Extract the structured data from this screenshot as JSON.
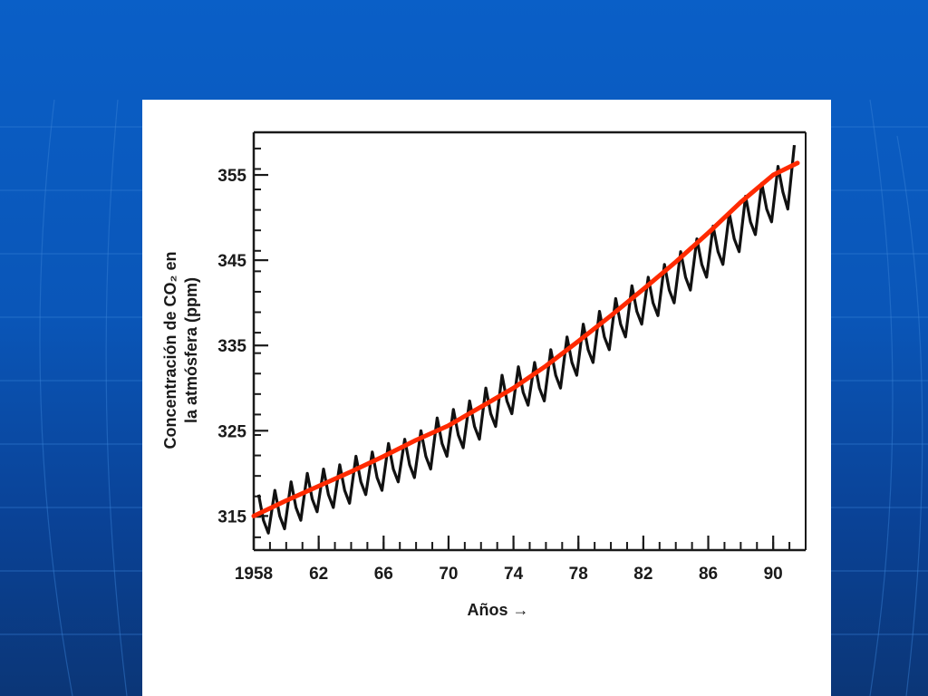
{
  "colors": {
    "background": "#0a56b8",
    "panel": "#ffffff",
    "measured_line": "#111111",
    "trend_line": "#ff2a00",
    "axis": "#1a1a1a"
  },
  "chart_data": {
    "type": "line",
    "title": "",
    "xlabel": "Años →",
    "ylabel_line1": "Concentración de CO₂ en",
    "ylabel_line2": "la atmósfera (ppm)",
    "xlim": [
      1958,
      1992
    ],
    "ylim": [
      311,
      360
    ],
    "x_ticks": [
      1958,
      1962,
      1966,
      1970,
      1974,
      1978,
      1982,
      1986,
      1990
    ],
    "x_tick_labels": [
      "1958",
      "62",
      "66",
      "70",
      "74",
      "78",
      "82",
      "86",
      "90"
    ],
    "y_ticks": [
      315,
      325,
      335,
      345,
      355
    ],
    "y_tick_labels": [
      "315",
      "325",
      "335",
      "345",
      "355"
    ],
    "grid": false,
    "legend": "none",
    "series": [
      {
        "style": "black-sawtooth",
        "x": [
          1958.3,
          1958.6,
          1958.9,
          1959.3,
          1959.6,
          1959.9,
          1960.3,
          1960.6,
          1960.9,
          1961.3,
          1961.6,
          1961.9,
          1962.3,
          1962.6,
          1962.9,
          1963.3,
          1963.6,
          1963.9,
          1964.3,
          1964.6,
          1964.9,
          1965.3,
          1965.6,
          1965.9,
          1966.3,
          1966.6,
          1966.9,
          1967.3,
          1967.6,
          1967.9,
          1968.3,
          1968.6,
          1968.9,
          1969.3,
          1969.6,
          1969.9,
          1970.3,
          1970.6,
          1970.9,
          1971.3,
          1971.6,
          1971.9,
          1972.3,
          1972.6,
          1972.9,
          1973.3,
          1973.6,
          1973.9,
          1974.3,
          1974.6,
          1974.9,
          1975.3,
          1975.6,
          1975.9,
          1976.3,
          1976.6,
          1976.9,
          1977.3,
          1977.6,
          1977.9,
          1978.3,
          1978.6,
          1978.9,
          1979.3,
          1979.6,
          1979.9,
          1980.3,
          1980.6,
          1980.9,
          1981.3,
          1981.6,
          1981.9,
          1982.3,
          1982.6,
          1982.9,
          1983.3,
          1983.6,
          1983.9,
          1984.3,
          1984.6,
          1984.9,
          1985.3,
          1985.6,
          1985.9,
          1986.3,
          1986.6,
          1986.9,
          1987.3,
          1987.6,
          1987.9,
          1988.3,
          1988.6,
          1988.9,
          1989.3,
          1989.6,
          1989.9,
          1990.3,
          1990.6,
          1990.9,
          1991.3
        ],
        "y": [
          317.5,
          314.5,
          313.0,
          318.0,
          315.0,
          313.5,
          319.0,
          316.0,
          314.5,
          320.0,
          317.0,
          315.5,
          320.5,
          317.5,
          316.0,
          321.0,
          318.0,
          316.5,
          322.0,
          319.0,
          317.5,
          322.5,
          319.5,
          318.0,
          323.5,
          320.5,
          319.0,
          324.0,
          321.0,
          319.5,
          325.0,
          322.0,
          320.5,
          326.5,
          323.5,
          322.0,
          327.5,
          324.5,
          323.0,
          328.5,
          325.5,
          324.0,
          330.0,
          327.0,
          325.5,
          331.5,
          328.5,
          327.0,
          332.5,
          329.5,
          328.0,
          333.0,
          330.0,
          328.5,
          334.5,
          331.5,
          330.0,
          336.0,
          333.0,
          331.5,
          337.5,
          334.5,
          333.0,
          339.0,
          336.0,
          334.5,
          340.5,
          337.5,
          336.0,
          342.0,
          339.0,
          337.5,
          343.0,
          340.0,
          338.5,
          344.5,
          341.5,
          340.0,
          346.0,
          343.0,
          341.5,
          347.5,
          344.5,
          343.0,
          349.0,
          346.0,
          344.5,
          350.5,
          347.5,
          346.0,
          352.5,
          349.5,
          348.0,
          354.0,
          351.0,
          349.5,
          356.0,
          353.0,
          351.0,
          358.5
        ]
      },
      {
        "style": "red-trend",
        "x": [
          1958,
          1960,
          1962,
          1964,
          1966,
          1968,
          1970,
          1972,
          1974,
          1976,
          1978,
          1980,
          1982,
          1984,
          1986,
          1988,
          1990,
          1991.5
        ],
        "y": [
          315.0,
          316.8,
          318.5,
          320.2,
          322.0,
          323.9,
          325.6,
          327.8,
          330.0,
          332.6,
          335.5,
          338.5,
          341.6,
          344.8,
          348.2,
          351.8,
          355.0,
          356.4
        ]
      }
    ]
  }
}
